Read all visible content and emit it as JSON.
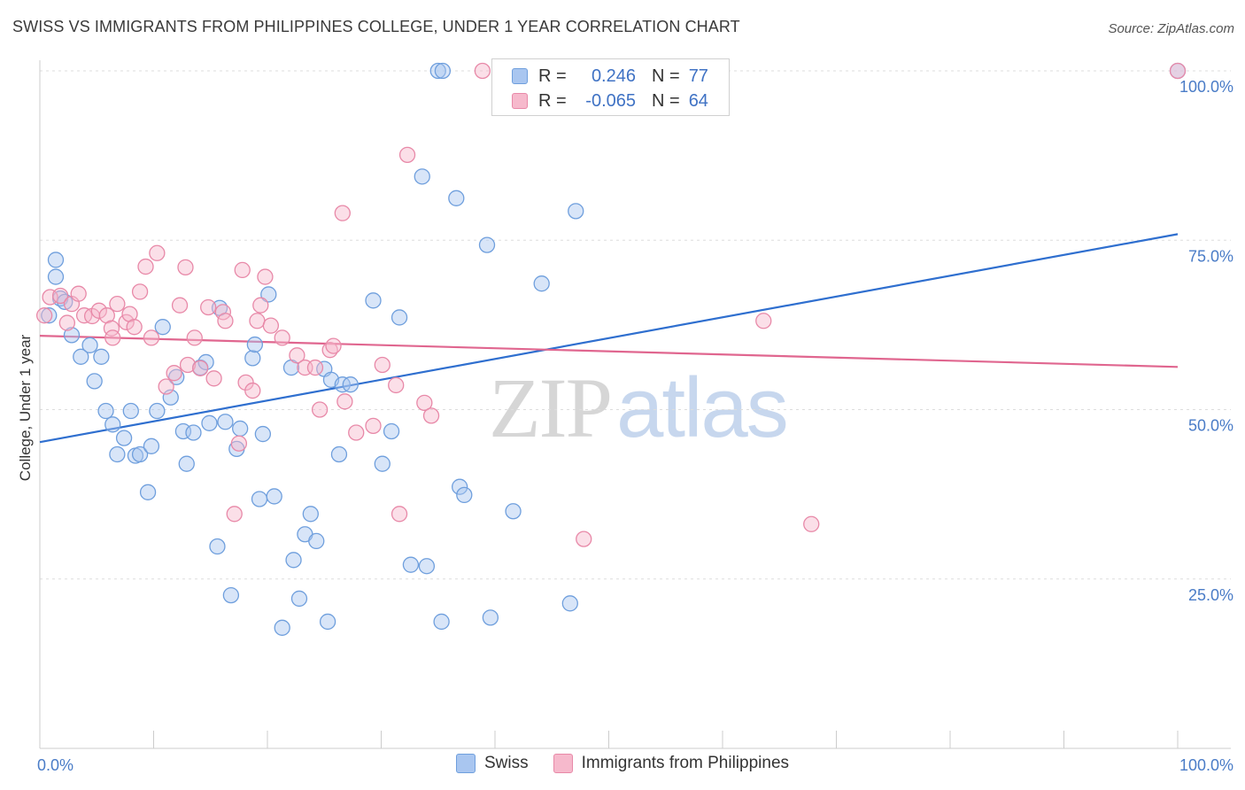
{
  "title": "SWISS VS IMMIGRANTS FROM PHILIPPINES COLLEGE, UNDER 1 YEAR CORRELATION CHART",
  "source": "Source: ZipAtlas.com",
  "legend_top": {
    "rows": [
      {
        "r_label": "R =",
        "r_value": "0.246",
        "n_label": "N =",
        "n_value": "77"
      },
      {
        "r_label": "R =",
        "r_value": "-0.065",
        "n_label": "N =",
        "n_value": "64"
      }
    ]
  },
  "watermark": {
    "zip": "ZIP",
    "atlas": "atlas"
  },
  "colors": {
    "swiss_fill": "#a9c6f0",
    "swiss_stroke": "#6f9fdd",
    "swiss_line": "#2f6fcf",
    "phil_fill": "#f6b9cc",
    "phil_stroke": "#e889a8",
    "phil_line": "#e0668f",
    "grid": "#dddddd",
    "axis": "#cccccc",
    "tick_text": "#4a7cc7"
  },
  "chart_data": {
    "type": "scatter",
    "title": "SWISS VS IMMIGRANTS FROM PHILIPPINES COLLEGE, UNDER 1 YEAR CORRELATION CHART",
    "xlabel": "",
    "ylabel": "College, Under 1 year",
    "xlim": [
      0,
      100
    ],
    "ylim": [
      0,
      100
    ],
    "x_tick_labels": [
      "0.0%",
      "100.0%"
    ],
    "y_tick_labels": [
      "25.0%",
      "50.0%",
      "75.0%",
      "100.0%"
    ],
    "y_ticks": [
      25,
      50,
      75,
      100
    ],
    "grid": true,
    "legend_position": "bottom",
    "series": [
      {
        "name": "Swiss",
        "r": 0.246,
        "n": 77,
        "trend": {
          "x": [
            0,
            100
          ],
          "y": [
            45.2,
            75.9
          ]
        },
        "points": [
          [
            0.8,
            63.9
          ],
          [
            1.4,
            72.1
          ],
          [
            1.4,
            69.6
          ],
          [
            1.8,
            66.4
          ],
          [
            2.2,
            65.9
          ],
          [
            2.8,
            61.0
          ],
          [
            3.6,
            57.8
          ],
          [
            4.4,
            59.5
          ],
          [
            5.4,
            57.8
          ],
          [
            4.8,
            54.2
          ],
          [
            5.8,
            49.8
          ],
          [
            6.4,
            47.8
          ],
          [
            6.8,
            43.4
          ],
          [
            7.4,
            45.8
          ],
          [
            8.0,
            49.8
          ],
          [
            8.4,
            43.2
          ],
          [
            8.8,
            43.4
          ],
          [
            9.5,
            37.8
          ],
          [
            9.8,
            44.6
          ],
          [
            10.3,
            49.8
          ],
          [
            10.8,
            62.2
          ],
          [
            11.5,
            51.8
          ],
          [
            12.0,
            54.8
          ],
          [
            12.6,
            46.8
          ],
          [
            12.9,
            42.0
          ],
          [
            13.5,
            46.6
          ],
          [
            14.1,
            56.2
          ],
          [
            14.6,
            57.0
          ],
          [
            14.9,
            48.0
          ],
          [
            15.6,
            29.8
          ],
          [
            15.8,
            65.0
          ],
          [
            16.3,
            48.2
          ],
          [
            16.8,
            22.6
          ],
          [
            17.3,
            44.2
          ],
          [
            17.6,
            47.2
          ],
          [
            18.7,
            57.6
          ],
          [
            18.9,
            59.6
          ],
          [
            19.3,
            36.8
          ],
          [
            19.6,
            46.4
          ],
          [
            20.1,
            67.0
          ],
          [
            20.6,
            37.2
          ],
          [
            21.3,
            17.8
          ],
          [
            22.1,
            56.2
          ],
          [
            22.3,
            27.8
          ],
          [
            22.8,
            22.1
          ],
          [
            23.3,
            31.6
          ],
          [
            23.8,
            34.6
          ],
          [
            24.3,
            30.6
          ],
          [
            25.0,
            56.0
          ],
          [
            25.3,
            18.7
          ],
          [
            25.6,
            54.4
          ],
          [
            26.3,
            43.4
          ],
          [
            26.6,
            53.7
          ],
          [
            27.3,
            53.7
          ],
          [
            29.3,
            66.1
          ],
          [
            30.1,
            42.0
          ],
          [
            30.9,
            46.8
          ],
          [
            31.6,
            63.6
          ],
          [
            32.6,
            27.1
          ],
          [
            33.6,
            84.4
          ],
          [
            34.0,
            26.9
          ],
          [
            35.0,
            100.0
          ],
          [
            35.3,
            18.7
          ],
          [
            36.6,
            81.2
          ],
          [
            36.9,
            38.6
          ],
          [
            37.3,
            37.4
          ],
          [
            39.3,
            74.3
          ],
          [
            39.6,
            19.3
          ],
          [
            41.1,
            100.0
          ],
          [
            41.6,
            35.0
          ],
          [
            44.1,
            68.6
          ],
          [
            46.6,
            21.4
          ],
          [
            47.1,
            79.3
          ],
          [
            50.4,
            100.0
          ],
          [
            51.2,
            100.0
          ],
          [
            100.0,
            100.0
          ],
          [
            35.4,
            100.0
          ]
        ]
      },
      {
        "name": "Immigrants from Philippines",
        "r": -0.065,
        "n": 64,
        "trend": {
          "x": [
            0,
            100
          ],
          "y": [
            60.9,
            56.3
          ]
        },
        "points": [
          [
            0.4,
            63.9
          ],
          [
            0.9,
            66.6
          ],
          [
            1.8,
            66.8
          ],
          [
            2.4,
            62.8
          ],
          [
            2.8,
            65.6
          ],
          [
            3.4,
            67.1
          ],
          [
            3.9,
            63.9
          ],
          [
            4.6,
            63.8
          ],
          [
            5.2,
            64.6
          ],
          [
            5.9,
            63.9
          ],
          [
            6.3,
            62.0
          ],
          [
            6.4,
            60.6
          ],
          [
            6.8,
            65.6
          ],
          [
            7.6,
            62.9
          ],
          [
            7.9,
            64.1
          ],
          [
            8.3,
            62.2
          ],
          [
            8.8,
            67.4
          ],
          [
            9.3,
            71.1
          ],
          [
            9.8,
            60.6
          ],
          [
            10.3,
            73.1
          ],
          [
            11.1,
            53.4
          ],
          [
            11.8,
            55.4
          ],
          [
            12.3,
            65.4
          ],
          [
            12.8,
            71.0
          ],
          [
            13.0,
            56.6
          ],
          [
            13.6,
            60.6
          ],
          [
            14.1,
            56.1
          ],
          [
            14.8,
            65.1
          ],
          [
            15.3,
            54.6
          ],
          [
            16.1,
            64.4
          ],
          [
            16.3,
            63.1
          ],
          [
            17.1,
            34.6
          ],
          [
            17.5,
            45.0
          ],
          [
            17.8,
            70.6
          ],
          [
            18.1,
            54.0
          ],
          [
            18.7,
            52.8
          ],
          [
            19.1,
            63.1
          ],
          [
            19.8,
            69.6
          ],
          [
            19.4,
            65.4
          ],
          [
            20.3,
            62.4
          ],
          [
            21.3,
            60.6
          ],
          [
            22.6,
            58.0
          ],
          [
            23.3,
            56.2
          ],
          [
            24.2,
            56.2
          ],
          [
            24.6,
            50.0
          ],
          [
            25.5,
            58.8
          ],
          [
            25.8,
            59.4
          ],
          [
            26.6,
            79.0
          ],
          [
            26.8,
            51.2
          ],
          [
            27.8,
            46.6
          ],
          [
            29.3,
            47.6
          ],
          [
            30.1,
            56.6
          ],
          [
            31.3,
            53.6
          ],
          [
            31.6,
            34.6
          ],
          [
            32.3,
            87.6
          ],
          [
            33.8,
            51.0
          ],
          [
            34.4,
            49.1
          ],
          [
            38.9,
            100.0
          ],
          [
            40.4,
            100.0
          ],
          [
            47.8,
            30.9
          ],
          [
            52.3,
            100.0
          ],
          [
            63.6,
            63.1
          ],
          [
            67.8,
            33.1
          ],
          [
            100.0,
            100.0
          ]
        ]
      }
    ]
  },
  "bottom_legend": [
    {
      "label": "Swiss"
    },
    {
      "label": "Immigrants from Philippines"
    }
  ]
}
